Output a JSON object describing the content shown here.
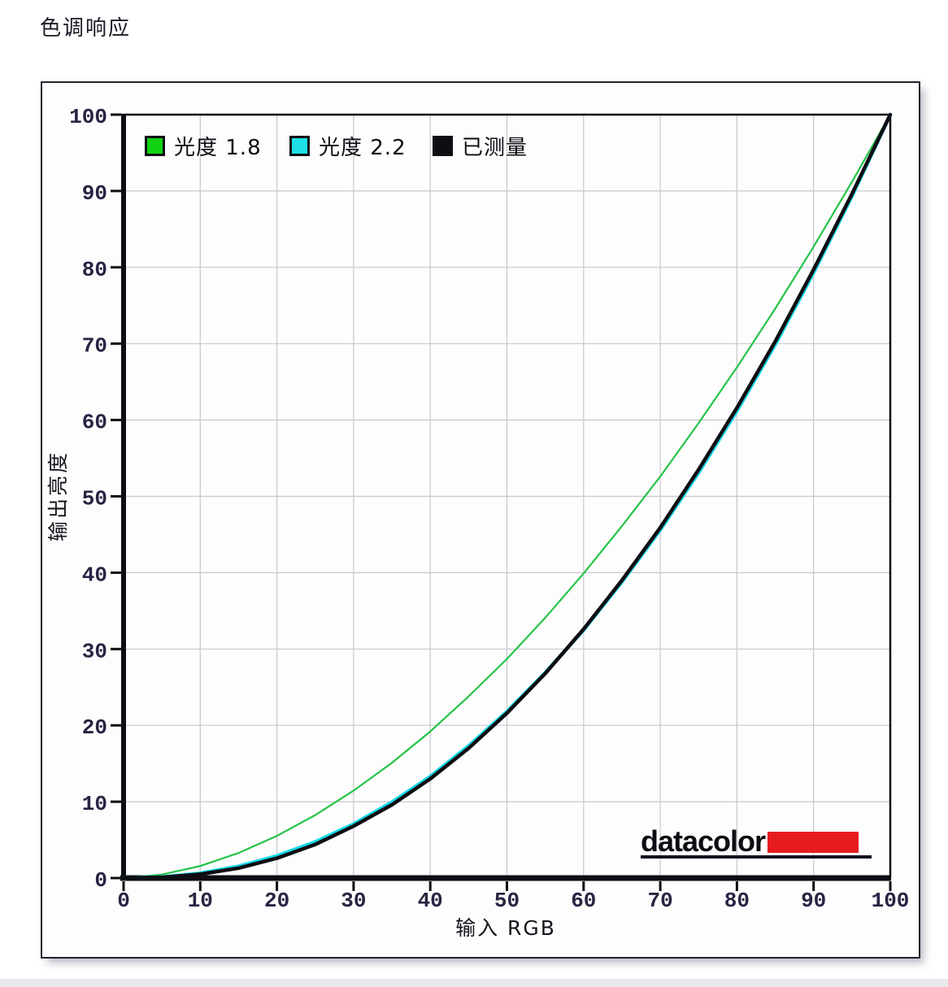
{
  "page": {
    "title": "色调响应"
  },
  "branding": {
    "logo_text": "datacolor",
    "red_bar_color": "#e61b20"
  },
  "style": {
    "frame_color": "#23232d",
    "axis_color": "#0d0d13",
    "grid_color": "#c7c7ce",
    "tick_label_color": "#2a2342",
    "axis_title_color": "#16161e"
  },
  "chart_data": {
    "type": "line",
    "title": "色调响应",
    "xlabel": "输入  RGB",
    "ylabel": "输出亮度",
    "xlim": [
      0,
      100
    ],
    "ylim": [
      0,
      100
    ],
    "x_ticks": [
      0,
      10,
      20,
      30,
      40,
      50,
      60,
      70,
      80,
      90,
      100
    ],
    "y_ticks": [
      0,
      10,
      20,
      30,
      40,
      50,
      60,
      70,
      80,
      90,
      100
    ],
    "grid": true,
    "legend_position": "inside-top-left",
    "x": [
      0,
      5,
      10,
      15,
      20,
      25,
      30,
      35,
      40,
      45,
      50,
      55,
      60,
      65,
      70,
      75,
      80,
      85,
      90,
      95,
      100
    ],
    "series": [
      {
        "name": "光度 1.8",
        "swatch_color": "#12d312",
        "line_color": "#25c347",
        "line_width": 2.2,
        "values": [
          0,
          0.46,
          1.58,
          3.29,
          5.52,
          8.25,
          11.45,
          15.1,
          19.2,
          23.8,
          28.7,
          34.1,
          39.9,
          46.1,
          52.6,
          59.6,
          66.9,
          74.6,
          82.7,
          91.2,
          100
        ]
      },
      {
        "name": "光度 2.2",
        "swatch_color": "#1ee0e6",
        "line_color": "#16d8e6",
        "line_width": 4.5,
        "values": [
          0,
          0.14,
          0.63,
          1.54,
          2.9,
          4.74,
          7.07,
          9.93,
          13.3,
          17.3,
          21.8,
          26.9,
          32.5,
          38.8,
          45.6,
          53.1,
          61.2,
          69.9,
          79.3,
          89.3,
          100
        ]
      },
      {
        "name": "已测量",
        "swatch_color": "#0d0d12",
        "line_color": "#0d0d12",
        "line_width": 4.5,
        "values": [
          0,
          0.1,
          0.5,
          1.3,
          2.6,
          4.4,
          6.8,
          9.6,
          13.0,
          17.0,
          21.6,
          26.8,
          32.6,
          39.0,
          45.9,
          53.5,
          61.6,
          70.3,
          79.7,
          89.6,
          100
        ]
      }
    ]
  }
}
